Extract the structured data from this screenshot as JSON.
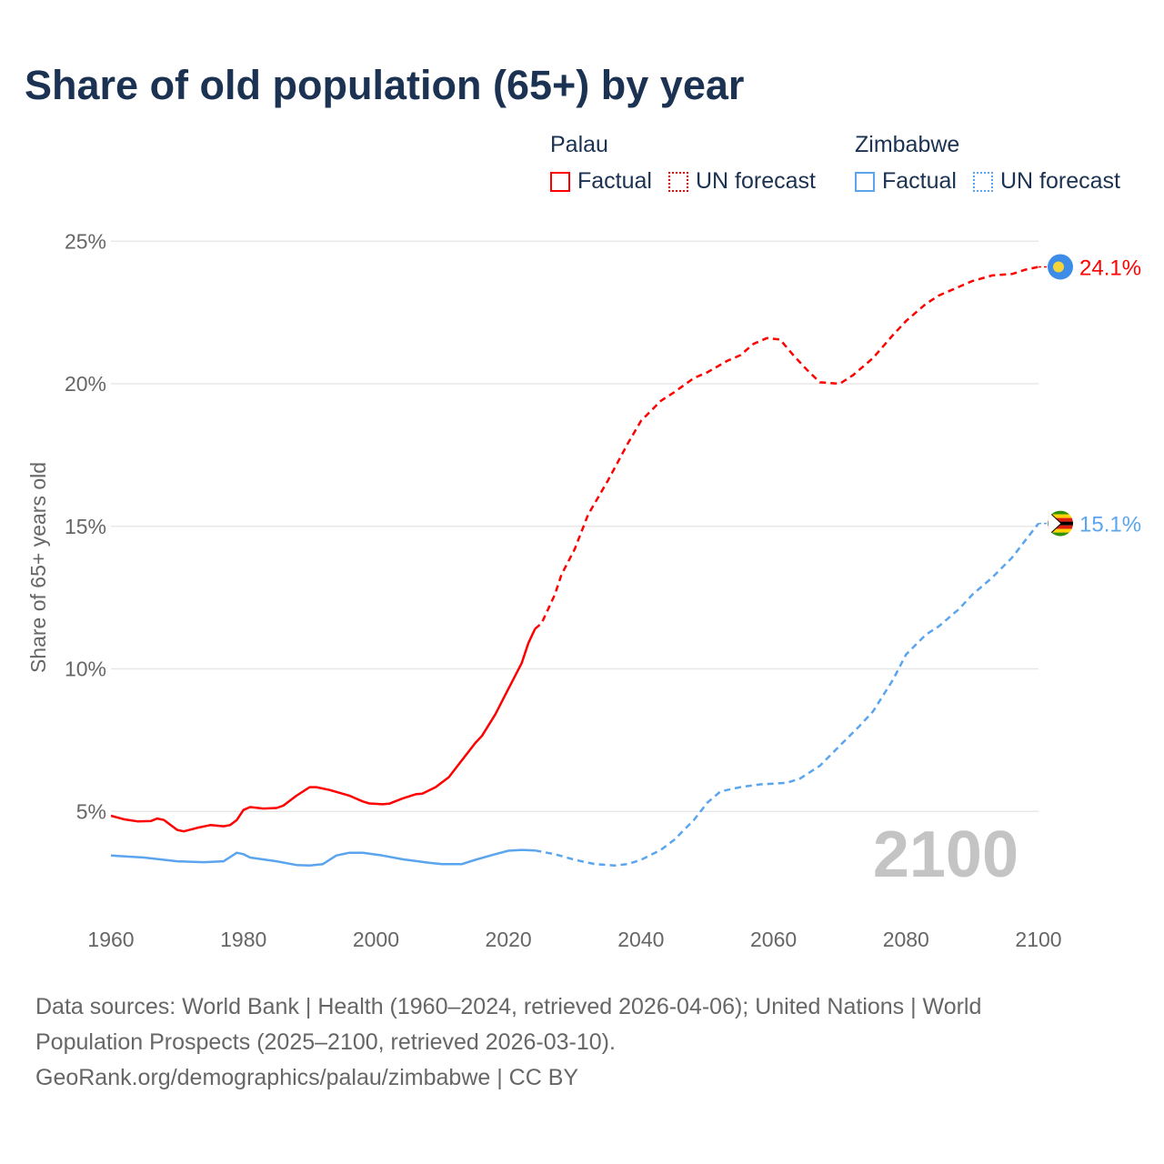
{
  "title": "Share of old population (65+) by year",
  "legend": {
    "groups": [
      {
        "name": "Palau",
        "color": "#ff0000",
        "factual": "Factual",
        "forecast": "UN forecast"
      },
      {
        "name": "Zimbabwe",
        "color": "#5aa5ee",
        "factual": "Factual",
        "forecast": "UN forecast"
      }
    ]
  },
  "footer": {
    "line1": "Data sources: World Bank | Health (1960–2024, retrieved 2026-04-06); United Nations | World",
    "line2": "Population Prospects (2025–2100, retrieved 2026-03-10).",
    "line3": "GeoRank.org/demographics/palau/zimbabwe | CC BY"
  },
  "chart_data": {
    "type": "line",
    "title": "Share of old population (65+) by year",
    "xlabel": "",
    "ylabel": "Share of 65+ years old",
    "xlim": [
      1960,
      2100
    ],
    "ylim": [
      0,
      25
    ],
    "x_ticks": [
      "1960",
      "1980",
      "2000",
      "2020",
      "2040",
      "2060",
      "2080",
      "2100"
    ],
    "y_ticks": [
      {
        "v": 5,
        "label": "5%"
      },
      {
        "v": 10,
        "label": "10%"
      },
      {
        "v": 15,
        "label": "15%"
      },
      {
        "v": 20,
        "label": "20%"
      },
      {
        "v": 25,
        "label": "25%"
      }
    ],
    "grid": true,
    "year_watermark": "2100",
    "forecast_start": 2024,
    "series": [
      {
        "name": "Palau",
        "color": "#ff0000",
        "end_label": "24.1%",
        "points": [
          [
            1960,
            4.85
          ],
          [
            1962,
            4.72
          ],
          [
            1964,
            4.65
          ],
          [
            1966,
            4.66
          ],
          [
            1967,
            4.75
          ],
          [
            1968,
            4.7
          ],
          [
            1970,
            4.35
          ],
          [
            1971,
            4.3
          ],
          [
            1973,
            4.42
          ],
          [
            1975,
            4.52
          ],
          [
            1977,
            4.48
          ],
          [
            1978,
            4.52
          ],
          [
            1979,
            4.7
          ],
          [
            1980,
            5.05
          ],
          [
            1981,
            5.15
          ],
          [
            1983,
            5.1
          ],
          [
            1985,
            5.12
          ],
          [
            1986,
            5.2
          ],
          [
            1988,
            5.55
          ],
          [
            1990,
            5.85
          ],
          [
            1991,
            5.85
          ],
          [
            1993,
            5.75
          ],
          [
            1996,
            5.55
          ],
          [
            1998,
            5.35
          ],
          [
            1999,
            5.28
          ],
          [
            2001,
            5.25
          ],
          [
            2002,
            5.27
          ],
          [
            2004,
            5.45
          ],
          [
            2006,
            5.6
          ],
          [
            2007,
            5.62
          ],
          [
            2009,
            5.85
          ],
          [
            2011,
            6.2
          ],
          [
            2013,
            6.8
          ],
          [
            2015,
            7.4
          ],
          [
            2016,
            7.65
          ],
          [
            2018,
            8.4
          ],
          [
            2020,
            9.3
          ],
          [
            2022,
            10.2
          ],
          [
            2023,
            10.9
          ],
          [
            2024,
            11.4
          ],
          [
            2025,
            11.6
          ],
          [
            2027,
            12.6
          ],
          [
            2028,
            13.3
          ],
          [
            2030,
            14.2
          ],
          [
            2032,
            15.4
          ],
          [
            2035,
            16.6
          ],
          [
            2038,
            17.9
          ],
          [
            2040,
            18.7
          ],
          [
            2043,
            19.4
          ],
          [
            2045,
            19.7
          ],
          [
            2048,
            20.2
          ],
          [
            2050,
            20.4
          ],
          [
            2053,
            20.8
          ],
          [
            2055,
            21.0
          ],
          [
            2057,
            21.4
          ],
          [
            2059,
            21.6
          ],
          [
            2061,
            21.55
          ],
          [
            2063,
            21.0
          ],
          [
            2065,
            20.5
          ],
          [
            2067,
            20.05
          ],
          [
            2070,
            20.0
          ],
          [
            2072,
            20.3
          ],
          [
            2075,
            20.9
          ],
          [
            2078,
            21.7
          ],
          [
            2080,
            22.2
          ],
          [
            2083,
            22.8
          ],
          [
            2085,
            23.1
          ],
          [
            2088,
            23.4
          ],
          [
            2090,
            23.6
          ],
          [
            2093,
            23.8
          ],
          [
            2096,
            23.85
          ],
          [
            2098,
            24.0
          ],
          [
            2100,
            24.1
          ]
        ]
      },
      {
        "name": "Zimbabwe",
        "color": "#5aa5ee",
        "end_label": "15.1%",
        "points": [
          [
            1960,
            3.45
          ],
          [
            1965,
            3.38
          ],
          [
            1970,
            3.25
          ],
          [
            1974,
            3.22
          ],
          [
            1977,
            3.25
          ],
          [
            1979,
            3.55
          ],
          [
            1980,
            3.5
          ],
          [
            1981,
            3.38
          ],
          [
            1985,
            3.25
          ],
          [
            1988,
            3.12
          ],
          [
            1990,
            3.1
          ],
          [
            1992,
            3.15
          ],
          [
            1994,
            3.45
          ],
          [
            1996,
            3.55
          ],
          [
            1998,
            3.55
          ],
          [
            2001,
            3.45
          ],
          [
            2004,
            3.32
          ],
          [
            2008,
            3.2
          ],
          [
            2010,
            3.15
          ],
          [
            2013,
            3.15
          ],
          [
            2015,
            3.3
          ],
          [
            2018,
            3.5
          ],
          [
            2020,
            3.62
          ],
          [
            2022,
            3.65
          ],
          [
            2024,
            3.63
          ],
          [
            2027,
            3.5
          ],
          [
            2030,
            3.3
          ],
          [
            2033,
            3.15
          ],
          [
            2036,
            3.1
          ],
          [
            2038,
            3.15
          ],
          [
            2040,
            3.3
          ],
          [
            2043,
            3.65
          ],
          [
            2045,
            4.0
          ],
          [
            2048,
            4.7
          ],
          [
            2050,
            5.3
          ],
          [
            2052,
            5.7
          ],
          [
            2055,
            5.85
          ],
          [
            2058,
            5.95
          ],
          [
            2062,
            6.0
          ],
          [
            2064,
            6.15
          ],
          [
            2067,
            6.6
          ],
          [
            2070,
            7.3
          ],
          [
            2073,
            8.0
          ],
          [
            2075,
            8.5
          ],
          [
            2078,
            9.6
          ],
          [
            2080,
            10.5
          ],
          [
            2083,
            11.2
          ],
          [
            2085,
            11.5
          ],
          [
            2088,
            12.1
          ],
          [
            2090,
            12.6
          ],
          [
            2093,
            13.2
          ],
          [
            2096,
            13.9
          ],
          [
            2098,
            14.5
          ],
          [
            2100,
            15.1
          ]
        ]
      }
    ]
  }
}
